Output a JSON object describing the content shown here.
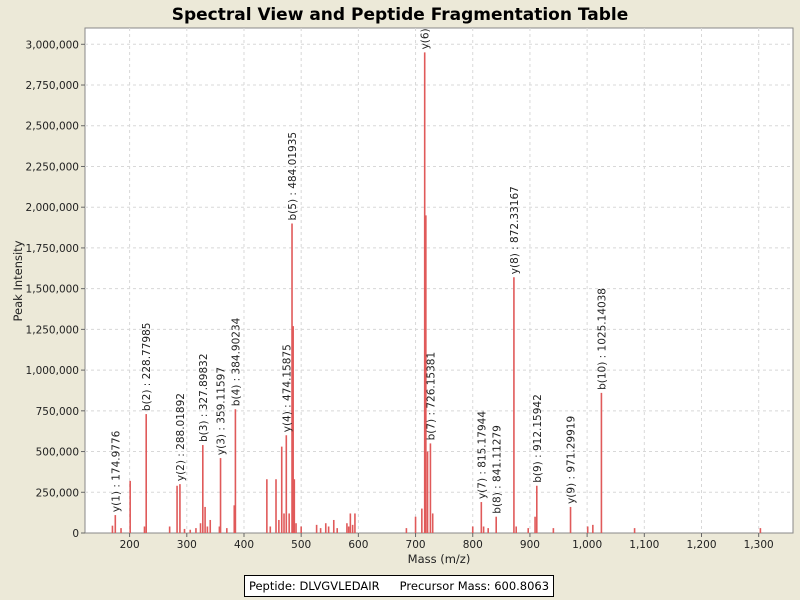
{
  "chart_data": {
    "type": "bar",
    "title": "Spectral View and Peptide Fragmentation Table",
    "xlabel": "Mass (m/z)",
    "ylabel": "Peak Intensity",
    "xlim": [
      122,
      1360
    ],
    "ylim": [
      0,
      3100000
    ],
    "xticks": [
      200,
      300,
      400,
      500,
      600,
      700,
      800,
      900,
      1000,
      1100,
      1200,
      1300
    ],
    "xtick_labels": [
      "200",
      "300",
      "400",
      "500",
      "600",
      "700",
      "800",
      "900",
      "1,000",
      "1,100",
      "1,200",
      "1,300"
    ],
    "yticks": [
      0,
      250000,
      500000,
      750000,
      1000000,
      1250000,
      1500000,
      1750000,
      2000000,
      2250000,
      2500000,
      2750000,
      3000000
    ],
    "ytick_labels": [
      "0",
      "250,000",
      "500,000",
      "750,000",
      "1,000,000",
      "1,250,000",
      "1,500,000",
      "1,750,000",
      "2,000,000",
      "2,250,000",
      "2,500,000",
      "2,750,000",
      "3,000,000"
    ],
    "grid": true,
    "bar_color": "#e05a5a",
    "peaks": [
      {
        "mz": 170,
        "intensity": 45000
      },
      {
        "mz": 175,
        "intensity": 110000
      },
      {
        "mz": 185,
        "intensity": 30000
      },
      {
        "mz": 201,
        "intensity": 320000
      },
      {
        "mz": 226,
        "intensity": 40000
      },
      {
        "mz": 229,
        "intensity": 730000
      },
      {
        "mz": 270,
        "intensity": 40000
      },
      {
        "mz": 283,
        "intensity": 290000
      },
      {
        "mz": 288,
        "intensity": 300000
      },
      {
        "mz": 296,
        "intensity": 25000
      },
      {
        "mz": 306,
        "intensity": 20000
      },
      {
        "mz": 316,
        "intensity": 30000
      },
      {
        "mz": 324,
        "intensity": 60000
      },
      {
        "mz": 328,
        "intensity": 540000
      },
      {
        "mz": 332,
        "intensity": 160000
      },
      {
        "mz": 336,
        "intensity": 40000
      },
      {
        "mz": 341,
        "intensity": 80000
      },
      {
        "mz": 357,
        "intensity": 40000
      },
      {
        "mz": 359,
        "intensity": 460000
      },
      {
        "mz": 370,
        "intensity": 30000
      },
      {
        "mz": 383,
        "intensity": 170000
      },
      {
        "mz": 385,
        "intensity": 760000
      },
      {
        "mz": 440,
        "intensity": 330000
      },
      {
        "mz": 446,
        "intensity": 40000
      },
      {
        "mz": 456,
        "intensity": 330000
      },
      {
        "mz": 461,
        "intensity": 80000
      },
      {
        "mz": 466,
        "intensity": 530000
      },
      {
        "mz": 470,
        "intensity": 120000
      },
      {
        "mz": 474,
        "intensity": 600000
      },
      {
        "mz": 479,
        "intensity": 120000
      },
      {
        "mz": 484,
        "intensity": 1900000
      },
      {
        "mz": 486,
        "intensity": 1270000
      },
      {
        "mz": 488,
        "intensity": 330000
      },
      {
        "mz": 491,
        "intensity": 60000
      },
      {
        "mz": 500,
        "intensity": 40000
      },
      {
        "mz": 527,
        "intensity": 50000
      },
      {
        "mz": 534,
        "intensity": 30000
      },
      {
        "mz": 543,
        "intensity": 60000
      },
      {
        "mz": 548,
        "intensity": 40000
      },
      {
        "mz": 557,
        "intensity": 80000
      },
      {
        "mz": 563,
        "intensity": 30000
      },
      {
        "mz": 580,
        "intensity": 60000
      },
      {
        "mz": 583,
        "intensity": 40000
      },
      {
        "mz": 586,
        "intensity": 120000
      },
      {
        "mz": 590,
        "intensity": 50000
      },
      {
        "mz": 594,
        "intensity": 120000
      },
      {
        "mz": 684,
        "intensity": 30000
      },
      {
        "mz": 700,
        "intensity": 100000
      },
      {
        "mz": 711,
        "intensity": 150000
      },
      {
        "mz": 716,
        "intensity": 2950000
      },
      {
        "mz": 718,
        "intensity": 1950000
      },
      {
        "mz": 721,
        "intensity": 500000
      },
      {
        "mz": 726,
        "intensity": 550000
      },
      {
        "mz": 730,
        "intensity": 120000
      },
      {
        "mz": 800,
        "intensity": 40000
      },
      {
        "mz": 815,
        "intensity": 190000
      },
      {
        "mz": 819,
        "intensity": 40000
      },
      {
        "mz": 827,
        "intensity": 30000
      },
      {
        "mz": 841,
        "intensity": 100000
      },
      {
        "mz": 872,
        "intensity": 1570000
      },
      {
        "mz": 876,
        "intensity": 40000
      },
      {
        "mz": 897,
        "intensity": 30000
      },
      {
        "mz": 909,
        "intensity": 100000
      },
      {
        "mz": 912,
        "intensity": 290000
      },
      {
        "mz": 941,
        "intensity": 30000
      },
      {
        "mz": 971,
        "intensity": 160000
      },
      {
        "mz": 1001,
        "intensity": 40000
      },
      {
        "mz": 1010,
        "intensity": 50000
      },
      {
        "mz": 1025,
        "intensity": 860000
      },
      {
        "mz": 1083,
        "intensity": 30000
      },
      {
        "mz": 1303,
        "intensity": 30000
      }
    ],
    "annotations": [
      {
        "mz": 174.9776,
        "intensity": 110000,
        "label": "y(1) : 174.9776"
      },
      {
        "mz": 228.77985,
        "intensity": 730000,
        "label": "b(2) : 228.77985"
      },
      {
        "mz": 288.01892,
        "intensity": 300000,
        "label": "y(2) : 288.01892"
      },
      {
        "mz": 327.89832,
        "intensity": 540000,
        "label": "b(3) : 327.89832"
      },
      {
        "mz": 359.11597,
        "intensity": 460000,
        "label": "y(3) : 359.11597"
      },
      {
        "mz": 384.90234,
        "intensity": 760000,
        "label": "b(4) : 384.90234"
      },
      {
        "mz": 474.15875,
        "intensity": 600000,
        "label": "y(4) : 474.15875"
      },
      {
        "mz": 484.01935,
        "intensity": 1900000,
        "label": "b(5) : 484.01935"
      },
      {
        "mz": 716.0,
        "intensity": 2950000,
        "label": "y(6)"
      },
      {
        "mz": 726.15381,
        "intensity": 550000,
        "label": "b(7) : 726.15381"
      },
      {
        "mz": 815.17944,
        "intensity": 190000,
        "label": "y(7) : 815.17944"
      },
      {
        "mz": 841.11279,
        "intensity": 100000,
        "label": "b(8) : 841.11279"
      },
      {
        "mz": 872.33167,
        "intensity": 1570000,
        "label": "y(8) : 872.33167"
      },
      {
        "mz": 912.15942,
        "intensity": 290000,
        "label": "b(9) : 912.15942"
      },
      {
        "mz": 971.29919,
        "intensity": 160000,
        "label": "y(9) : 971.29919"
      },
      {
        "mz": 1025.14038,
        "intensity": 860000,
        "label": "b(10) : 1025.14038"
      }
    ]
  },
  "info": {
    "peptide": "Peptide: DLVGVLEDAIR",
    "precursor": "Precursor Mass: 600.8063"
  }
}
